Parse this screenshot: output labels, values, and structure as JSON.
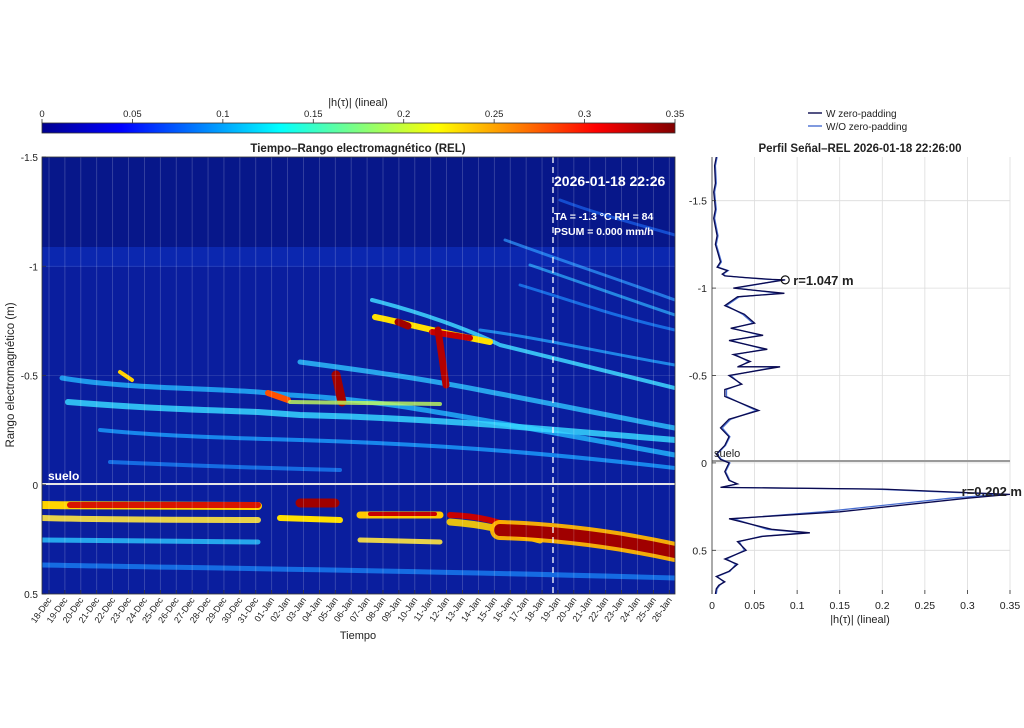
{
  "colorbar": {
    "label": "|h(τ)| (lineal)",
    "min": 0,
    "max": 0.35,
    "ticks": [
      "0",
      "0.05",
      "0.1",
      "0.15",
      "0.2",
      "0.25",
      "0.3",
      "0.35"
    ],
    "colormap": [
      "#00008f",
      "#0000ff",
      "#0080ff",
      "#00ffff",
      "#80ff80",
      "#ffff00",
      "#ff8000",
      "#ff0000",
      "#800000"
    ]
  },
  "chart_data": [
    {
      "type": "heatmap",
      "title": "Tiempo–Rango electromagnético (REL)",
      "xlabel": "Tiempo",
      "ylabel": "Rango electromagnético (m)",
      "x_tick_labels": [
        "18-Dec",
        "19-Dec",
        "20-Dec",
        "21-Dec",
        "22-Dec",
        "23-Dec",
        "24-Dec",
        "25-Dec",
        "26-Dec",
        "27-Dec",
        "28-Dec",
        "29-Dec",
        "30-Dec",
        "31-Dec",
        "01-Jan",
        "02-Jan",
        "03-Jan",
        "04-Jan",
        "05-Jan",
        "06-Jan",
        "07-Jan",
        "08-Jan",
        "09-Jan",
        "10-Jan",
        "11-Jan",
        "12-Jan",
        "13-Jan",
        "14-Jan",
        "15-Jan",
        "16-Jan",
        "17-Jan",
        "18-Jan",
        "19-Jan",
        "20-Jan",
        "21-Jan",
        "22-Jan",
        "23-Jan",
        "24-Jan",
        "25-Jan",
        "26-Jan"
      ],
      "y_tick_labels": [
        "-1.5",
        "-1",
        "-0.5",
        "0",
        "0.5"
      ],
      "ylim": [
        -1.5,
        0.5
      ],
      "ground_label": "suelo",
      "ground_range": 0,
      "marker_line_x": "18-Jan 22:26",
      "annotation_timestamp": "2026-01-18 22:26",
      "annotation_meteo": [
        "TA = -1.3 °C    RH = 84",
        "PSUM = 0.000 mm/h"
      ],
      "strong_reflectors": [
        {
          "x": "21-Dec/30-Dec",
          "range": 0.1
        },
        {
          "x": "03-Jan",
          "range": 0.1
        },
        {
          "x": "05-Jan",
          "range": -0.45
        },
        {
          "x": "08-Jan",
          "range": -0.8
        },
        {
          "x": "11-Jan",
          "range": -0.7
        },
        {
          "x": "16-Jan/26-Jan",
          "range": 0.25
        }
      ]
    },
    {
      "type": "line",
      "title": "Perfil Señal–REL  2026-01-18 22:26:00",
      "xlabel": "|h(τ)| (lineal)",
      "ylabel": "",
      "xlim": [
        0,
        0.35
      ],
      "ylim": [
        -1.75,
        0.75
      ],
      "x_tick_labels": [
        "0",
        "0.05",
        "0.1",
        "0.15",
        "0.2",
        "0.25",
        "0.3",
        "0.35"
      ],
      "y_tick_labels": [
        "-1.5",
        "-1",
        "-0.5",
        "0",
        "0.5"
      ],
      "legend": [
        "W zero-padding",
        "W/O zero-padding"
      ],
      "legend_position": "top",
      "ground_label": "suelo",
      "annotations": [
        {
          "label": "r=1.047 m",
          "x": 0.086,
          "y": -1.047
        },
        {
          "label": "r=0.202 m",
          "x": 0.32,
          "y": 0.202
        }
      ],
      "series": [
        {
          "name": "W zero-padding",
          "color": "#0a0a50",
          "x": [
            0.005,
            0.003,
            0.004,
            0.002,
            0.003,
            0.004,
            0.002,
            0.006,
            0.004,
            0.01,
            0.006,
            0.018,
            0.012,
            0.015,
            0.04,
            0.07,
            0.086,
            0.05,
            0.025,
            0.085,
            0.03,
            0.015,
            0.038,
            0.05,
            0.022,
            0.06,
            0.02,
            0.065,
            0.025,
            0.045,
            0.03,
            0.08,
            0.02,
            0.035,
            0.015,
            0.015,
            0.055,
            0.02,
            0.01,
            0.02,
            0.015,
            0.005,
            0.01,
            0.02,
            0.015,
            0.02,
            0.03,
            0.01,
            0.2,
            0.35,
            0.3,
            0.15,
            0.02,
            0.07,
            0.115,
            0.06,
            0.03,
            0.04,
            0.015,
            0.03,
            0.02,
            0.005,
            0.015,
            0.008,
            0.005,
            0.004
          ],
          "y": [
            -1.75,
            -1.7,
            -1.6,
            -1.55,
            -1.5,
            -1.45,
            -1.4,
            -1.3,
            -1.25,
            -1.15,
            -1.12,
            -1.1,
            -1.08,
            -1.07,
            -1.06,
            -1.05,
            -1.047,
            -1.02,
            -1.0,
            -0.97,
            -0.95,
            -0.9,
            -0.85,
            -0.8,
            -0.77,
            -0.73,
            -0.7,
            -0.65,
            -0.62,
            -0.58,
            -0.55,
            -0.55,
            -0.5,
            -0.45,
            -0.42,
            -0.38,
            -0.3,
            -0.25,
            -0.2,
            -0.15,
            -0.1,
            -0.05,
            -0.02,
            0.0,
            0.05,
            0.1,
            0.12,
            0.14,
            0.15,
            0.18,
            0.202,
            0.28,
            0.32,
            0.38,
            0.4,
            0.42,
            0.45,
            0.5,
            0.55,
            0.58,
            0.62,
            0.65,
            0.68,
            0.7,
            0.72,
            0.75
          ]
        },
        {
          "name": "W/O zero-padding",
          "color": "#4a6fd1",
          "x": [
            0.006,
            0.004,
            0.005,
            0.003,
            0.004,
            0.005,
            0.003,
            0.007,
            0.005,
            0.011,
            0.007,
            0.019,
            0.013,
            0.016,
            0.038,
            0.066,
            0.082,
            0.052,
            0.027,
            0.08,
            0.032,
            0.017,
            0.036,
            0.048,
            0.024,
            0.057,
            0.022,
            0.062,
            0.027,
            0.043,
            0.032,
            0.076,
            0.022,
            0.034,
            0.017,
            0.017,
            0.052,
            0.022,
            0.012,
            0.021,
            0.016,
            0.006,
            0.011,
            0.021,
            0.016,
            0.021,
            0.029,
            0.012,
            0.19,
            0.34,
            0.28,
            0.13,
            0.025,
            0.065,
            0.11,
            0.058,
            0.032,
            0.038,
            0.017,
            0.028,
            0.021,
            0.006,
            0.014,
            0.009,
            0.006,
            0.005
          ],
          "y": [
            -1.75,
            -1.7,
            -1.6,
            -1.55,
            -1.5,
            -1.45,
            -1.4,
            -1.3,
            -1.25,
            -1.15,
            -1.12,
            -1.1,
            -1.08,
            -1.07,
            -1.06,
            -1.05,
            -1.047,
            -1.02,
            -1.0,
            -0.97,
            -0.95,
            -0.9,
            -0.85,
            -0.8,
            -0.77,
            -0.73,
            -0.7,
            -0.65,
            -0.62,
            -0.58,
            -0.55,
            -0.55,
            -0.5,
            -0.45,
            -0.42,
            -0.38,
            -0.3,
            -0.25,
            -0.2,
            -0.15,
            -0.1,
            -0.05,
            -0.02,
            0.0,
            0.05,
            0.1,
            0.12,
            0.14,
            0.15,
            0.18,
            0.202,
            0.28,
            0.32,
            0.38,
            0.4,
            0.42,
            0.45,
            0.5,
            0.55,
            0.58,
            0.62,
            0.65,
            0.68,
            0.7,
            0.72,
            0.75
          ]
        }
      ]
    }
  ]
}
